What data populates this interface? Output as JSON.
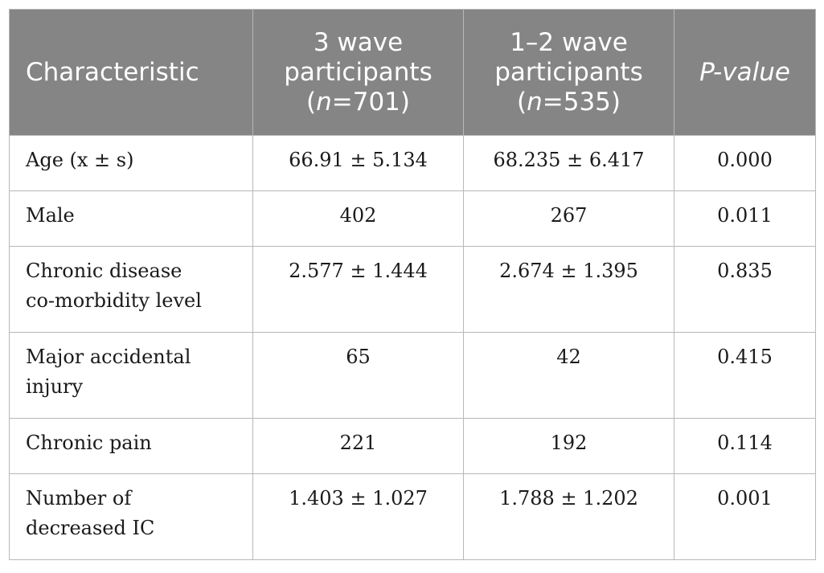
{
  "table": {
    "headers": {
      "characteristic": "Characteristic",
      "col1_line1": "3 wave",
      "col1_line2": "participants",
      "col1_n_pre": "(",
      "col1_n_var": "n",
      "col1_n_post": "=701)",
      "col2_line1": "1–2 wave",
      "col2_line2": "participants",
      "col2_n_pre": "(",
      "col2_n_var": "n",
      "col2_n_post": "=535)",
      "pvalue": "P-value"
    },
    "rows": [
      {
        "label": [
          "Age (x ± s)"
        ],
        "wave3": "66.91 ± 5.134",
        "wave12": "68.235 ± 6.417",
        "p": "0.000"
      },
      {
        "label": [
          "Male"
        ],
        "wave3": "402",
        "wave12": "267",
        "p": "0.011"
      },
      {
        "label": [
          "Chronic disease",
          "co-morbidity level"
        ],
        "wave3": "2.577 ± 1.444",
        "wave12": "2.674 ± 1.395",
        "p": "0.835"
      },
      {
        "label": [
          "Major accidental",
          "injury"
        ],
        "wave3": "65",
        "wave12": "42",
        "p": "0.415"
      },
      {
        "label": [
          "Chronic pain"
        ],
        "wave3": "221",
        "wave12": "192",
        "p": "0.114"
      },
      {
        "label": [
          "Number of",
          "decreased IC"
        ],
        "wave3": "1.403 ± 1.027",
        "wave12": "1.788 ± 1.202",
        "p": "0.001"
      }
    ]
  }
}
